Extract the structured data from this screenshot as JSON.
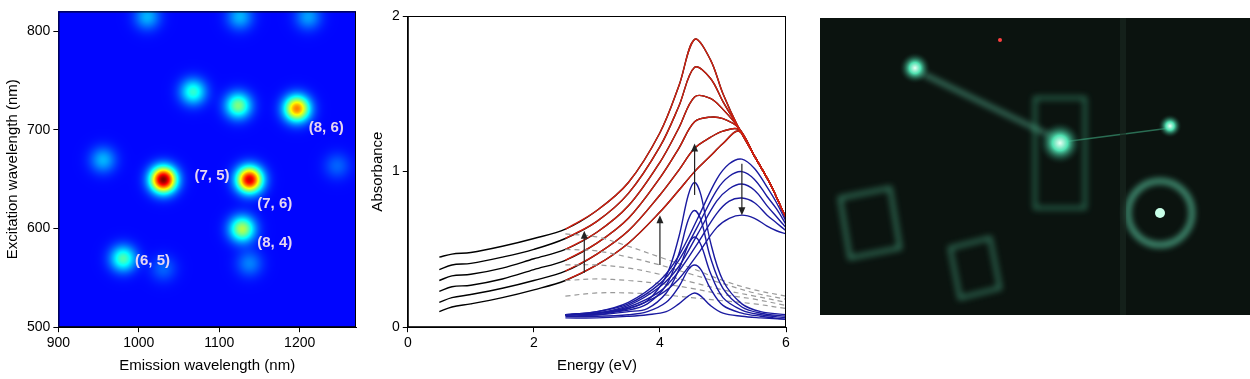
{
  "chart_data": [
    {
      "type": "heatmap",
      "x_label": "Emission wavelength (nm)",
      "y_label": "Excitation wavelength (nm)",
      "xlim": [
        900,
        1270
      ],
      "ylim": [
        500,
        820
      ],
      "xticks": [
        900,
        1000,
        1100,
        1200
      ],
      "yticks": [
        500,
        600,
        700,
        800
      ],
      "grid": false,
      "baseline": 0.13,
      "peaks": [
        {
          "x": 980,
          "y": 570,
          "intensity": 0.45
        },
        {
          "x": 1030,
          "y": 650,
          "intensity": 1.0
        },
        {
          "x": 1137,
          "y": 650,
          "intensity": 0.92
        },
        {
          "x": 1128,
          "y": 600,
          "intensity": 0.55
        },
        {
          "x": 1196,
          "y": 722,
          "intensity": 0.75
        },
        {
          "x": 1067,
          "y": 739,
          "intensity": 0.42
        },
        {
          "x": 1123,
          "y": 725,
          "intensity": 0.5
        },
        {
          "x": 955,
          "y": 670,
          "intensity": 0.3
        },
        {
          "x": 1246,
          "y": 664,
          "intensity": 0.22
        },
        {
          "x": 1010,
          "y": 815,
          "intensity": 0.3
        },
        {
          "x": 1125,
          "y": 815,
          "intensity": 0.3
        },
        {
          "x": 1210,
          "y": 815,
          "intensity": 0.28
        },
        {
          "x": 1030,
          "y": 560,
          "intensity": 0.22
        },
        {
          "x": 1137,
          "y": 565,
          "intensity": 0.25
        }
      ],
      "annotations": [
        {
          "text": "(6, 5)",
          "x": 1017,
          "y": 567
        },
        {
          "text": "(7, 5)",
          "x": 1091,
          "y": 653
        },
        {
          "text": "(7, 6)",
          "x": 1169,
          "y": 625
        },
        {
          "text": "(8, 4)",
          "x": 1169,
          "y": 585
        },
        {
          "text": "(8, 6)",
          "x": 1233,
          "y": 702
        }
      ]
    },
    {
      "type": "line",
      "x_label": "Energy (eV)",
      "y_label": "Absorbance",
      "xlim": [
        0,
        6
      ],
      "ylim": [
        0,
        2
      ],
      "xticks": [
        0,
        2,
        4,
        6
      ],
      "yticks": [
        0,
        1,
        2
      ],
      "grid": false,
      "series": [
        {
          "color": "#000000",
          "line_style": "solid",
          "x": [
            0.5,
            0.7,
            1.0,
            1.5,
            2.0,
            2.5,
            3.0,
            3.5,
            4.0,
            4.3,
            4.55,
            4.8,
            5.0,
            5.25,
            5.5,
            5.75,
            6.0
          ],
          "values": [
            0.45,
            0.47,
            0.48,
            0.52,
            0.57,
            0.63,
            0.75,
            0.93,
            1.25,
            1.55,
            1.85,
            1.72,
            1.5,
            1.28,
            1.1,
            0.92,
            0.7
          ]
        },
        {
          "color": "#000000",
          "line_style": "solid",
          "x": [
            0.5,
            0.7,
            1.0,
            1.5,
            2.0,
            2.5,
            3.0,
            3.5,
            4.0,
            4.3,
            4.55,
            4.8,
            5.0,
            5.25,
            5.5,
            5.75,
            6.0
          ],
          "values": [
            0.37,
            0.4,
            0.41,
            0.45,
            0.5,
            0.57,
            0.68,
            0.86,
            1.16,
            1.42,
            1.67,
            1.6,
            1.45,
            1.28,
            1.1,
            0.92,
            0.7
          ]
        },
        {
          "color": "#000000",
          "line_style": "solid",
          "x": [
            0.5,
            0.7,
            1.0,
            1.5,
            2.0,
            2.5,
            3.0,
            3.5,
            4.0,
            4.3,
            4.55,
            4.8,
            5.0,
            5.25,
            5.5,
            5.75,
            6.0
          ],
          "values": [
            0.3,
            0.33,
            0.34,
            0.38,
            0.44,
            0.5,
            0.61,
            0.78,
            1.06,
            1.28,
            1.48,
            1.47,
            1.4,
            1.28,
            1.1,
            0.92,
            0.7
          ]
        },
        {
          "color": "#000000",
          "line_style": "solid",
          "x": [
            0.5,
            0.7,
            1.0,
            1.5,
            2.0,
            2.5,
            3.0,
            3.5,
            4.0,
            4.3,
            4.55,
            4.8,
            5.0,
            5.25,
            5.5,
            5.75,
            6.0
          ],
          "values": [
            0.23,
            0.26,
            0.27,
            0.31,
            0.37,
            0.43,
            0.54,
            0.7,
            0.96,
            1.15,
            1.32,
            1.35,
            1.34,
            1.28,
            1.1,
            0.92,
            0.7
          ]
        },
        {
          "color": "#000000",
          "line_style": "solid",
          "x": [
            0.5,
            0.7,
            1.0,
            1.5,
            2.0,
            2.5,
            3.0,
            3.5,
            4.0,
            4.3,
            4.55,
            4.8,
            5.0,
            5.25,
            5.5,
            5.75,
            6.0
          ],
          "values": [
            0.16,
            0.19,
            0.21,
            0.25,
            0.3,
            0.36,
            0.47,
            0.62,
            0.85,
            1.01,
            1.15,
            1.22,
            1.26,
            1.27,
            1.1,
            0.92,
            0.7
          ]
        },
        {
          "color": "#000000",
          "line_style": "solid",
          "x": [
            0.5,
            0.7,
            1.0,
            1.5,
            2.0,
            2.5,
            3.0,
            3.5,
            4.0,
            4.3,
            4.55,
            4.8,
            5.0,
            5.25,
            5.5,
            5.75,
            6.0
          ],
          "values": [
            0.1,
            0.13,
            0.15,
            0.19,
            0.24,
            0.3,
            0.4,
            0.54,
            0.74,
            0.88,
            1.0,
            1.1,
            1.18,
            1.26,
            1.1,
            0.92,
            0.7
          ]
        },
        {
          "color": "#d02010",
          "line_style": "solid",
          "x": [
            2.5,
            3.0,
            3.5,
            4.0,
            4.3,
            4.55,
            4.8,
            5.0,
            5.25,
            5.5,
            5.75,
            6.0
          ],
          "values": [
            0.63,
            0.75,
            0.93,
            1.25,
            1.55,
            1.85,
            1.72,
            1.5,
            1.28,
            1.1,
            0.92,
            0.7
          ]
        },
        {
          "color": "#d02010",
          "line_style": "solid",
          "x": [
            2.5,
            3.0,
            3.5,
            4.0,
            4.3,
            4.55,
            4.8,
            5.0,
            5.25,
            5.5,
            5.75,
            6.0
          ],
          "values": [
            0.57,
            0.68,
            0.86,
            1.16,
            1.42,
            1.67,
            1.6,
            1.45,
            1.28,
            1.1,
            0.92,
            0.7
          ]
        },
        {
          "color": "#d02010",
          "line_style": "solid",
          "x": [
            2.5,
            3.0,
            3.5,
            4.0,
            4.3,
            4.55,
            4.8,
            5.0,
            5.25,
            5.5,
            5.75,
            6.0
          ],
          "values": [
            0.5,
            0.61,
            0.78,
            1.06,
            1.28,
            1.48,
            1.47,
            1.4,
            1.28,
            1.1,
            0.92,
            0.7
          ]
        },
        {
          "color": "#d02010",
          "line_style": "solid",
          "x": [
            2.5,
            3.0,
            3.5,
            4.0,
            4.3,
            4.55,
            4.8,
            5.0,
            5.25,
            5.5,
            5.75,
            6.0
          ],
          "values": [
            0.43,
            0.54,
            0.7,
            0.96,
            1.15,
            1.32,
            1.35,
            1.34,
            1.28,
            1.1,
            0.92,
            0.7
          ]
        },
        {
          "color": "#d02010",
          "line_style": "solid",
          "x": [
            2.5,
            3.0,
            3.5,
            4.0,
            4.3,
            4.55,
            4.8,
            5.0,
            5.25,
            5.5,
            5.75,
            6.0
          ],
          "values": [
            0.36,
            0.47,
            0.62,
            0.85,
            1.01,
            1.15,
            1.22,
            1.26,
            1.27,
            1.1,
            0.92,
            0.7
          ]
        },
        {
          "color": "#d02010",
          "line_style": "solid",
          "x": [
            2.5,
            3.0,
            3.5,
            4.0,
            4.3,
            4.55,
            4.8,
            5.0,
            5.25,
            5.5,
            5.75,
            6.0
          ],
          "values": [
            0.3,
            0.4,
            0.54,
            0.74,
            0.88,
            1.0,
            1.1,
            1.18,
            1.26,
            1.1,
            0.92,
            0.7
          ]
        },
        {
          "color": "#999999",
          "line_style": "dashed",
          "x": [
            2.5,
            3.0,
            3.5,
            4.0,
            4.5,
            5.0,
            5.5,
            6.0
          ],
          "values": [
            0.6,
            0.58,
            0.52,
            0.45,
            0.38,
            0.3,
            0.24,
            0.2
          ]
        },
        {
          "color": "#999999",
          "line_style": "dashed",
          "x": [
            2.5,
            3.0,
            3.5,
            4.0,
            4.5,
            5.0,
            5.5,
            6.0
          ],
          "values": [
            0.5,
            0.49,
            0.45,
            0.4,
            0.34,
            0.28,
            0.22,
            0.18
          ]
        },
        {
          "color": "#999999",
          "line_style": "dashed",
          "x": [
            2.5,
            3.0,
            3.5,
            4.0,
            4.5,
            5.0,
            5.5,
            6.0
          ],
          "values": [
            0.4,
            0.4,
            0.38,
            0.34,
            0.29,
            0.24,
            0.2,
            0.16
          ]
        },
        {
          "color": "#999999",
          "line_style": "dashed",
          "x": [
            2.5,
            3.0,
            3.5,
            4.0,
            4.5,
            5.0,
            5.5,
            6.0
          ],
          "values": [
            0.3,
            0.31,
            0.3,
            0.28,
            0.25,
            0.21,
            0.18,
            0.14
          ]
        },
        {
          "color": "#999999",
          "line_style": "dashed",
          "x": [
            2.5,
            3.0,
            3.5,
            4.0,
            4.5,
            5.0,
            5.5,
            6.0
          ],
          "values": [
            0.2,
            0.22,
            0.22,
            0.21,
            0.19,
            0.17,
            0.15,
            0.12
          ]
        },
        {
          "color": "#1a1aa0",
          "line_style": "solid",
          "x": [
            2.5,
            3.0,
            3.5,
            3.8,
            4.1,
            4.3,
            4.45,
            4.55,
            4.65,
            4.8,
            5.0,
            5.3,
            5.6,
            6.0
          ],
          "values": [
            0.08,
            0.09,
            0.12,
            0.17,
            0.33,
            0.58,
            0.85,
            0.93,
            0.85,
            0.55,
            0.3,
            0.15,
            0.1,
            0.08
          ]
        },
        {
          "color": "#1a1aa0",
          "line_style": "solid",
          "x": [
            2.5,
            3.0,
            3.5,
            3.8,
            4.1,
            4.3,
            4.45,
            4.55,
            4.65,
            4.8,
            5.0,
            5.3,
            5.6,
            6.0
          ],
          "values": [
            0.08,
            0.09,
            0.11,
            0.15,
            0.27,
            0.47,
            0.69,
            0.75,
            0.69,
            0.45,
            0.25,
            0.13,
            0.09,
            0.07
          ]
        },
        {
          "color": "#1a1aa0",
          "line_style": "solid",
          "x": [
            2.5,
            3.0,
            3.5,
            3.8,
            4.1,
            4.3,
            4.45,
            4.55,
            4.65,
            4.8,
            5.0,
            5.3,
            5.6,
            6.0
          ],
          "values": [
            0.08,
            0.08,
            0.1,
            0.12,
            0.22,
            0.37,
            0.53,
            0.58,
            0.53,
            0.35,
            0.19,
            0.11,
            0.08,
            0.06
          ]
        },
        {
          "color": "#1a1aa0",
          "line_style": "solid",
          "x": [
            2.5,
            3.0,
            3.5,
            3.8,
            4.1,
            4.3,
            4.45,
            4.55,
            4.65,
            4.8,
            5.0,
            5.3,
            5.6,
            6.0
          ],
          "values": [
            0.07,
            0.07,
            0.08,
            0.1,
            0.16,
            0.26,
            0.37,
            0.4,
            0.37,
            0.25,
            0.14,
            0.09,
            0.07,
            0.05
          ]
        },
        {
          "color": "#1a1aa0",
          "line_style": "solid",
          "x": [
            2.5,
            3.0,
            3.5,
            3.8,
            4.1,
            4.3,
            4.45,
            4.55,
            4.65,
            4.8,
            5.0,
            5.3,
            5.6,
            6.0
          ],
          "values": [
            0.06,
            0.06,
            0.07,
            0.08,
            0.1,
            0.15,
            0.2,
            0.22,
            0.2,
            0.14,
            0.09,
            0.07,
            0.06,
            0.05
          ]
        },
        {
          "color": "#1a1aa0",
          "line_style": "solid",
          "x": [
            2.5,
            3.0,
            3.5,
            4.0,
            4.3,
            4.6,
            4.9,
            5.1,
            5.3,
            5.5,
            5.7,
            5.85,
            6.0
          ],
          "values": [
            0.08,
            0.1,
            0.16,
            0.3,
            0.46,
            0.7,
            0.95,
            1.05,
            1.08,
            1.02,
            0.9,
            0.8,
            0.68
          ]
        },
        {
          "color": "#1a1aa0",
          "line_style": "solid",
          "x": [
            2.5,
            3.0,
            3.5,
            4.0,
            4.3,
            4.6,
            4.9,
            5.1,
            5.3,
            5.5,
            5.7,
            5.85,
            6.0
          ],
          "values": [
            0.08,
            0.1,
            0.15,
            0.28,
            0.43,
            0.65,
            0.88,
            0.97,
            1.0,
            0.95,
            0.84,
            0.76,
            0.66
          ]
        },
        {
          "color": "#1a1aa0",
          "line_style": "solid",
          "x": [
            2.5,
            3.0,
            3.5,
            4.0,
            4.3,
            4.6,
            4.9,
            5.1,
            5.3,
            5.5,
            5.7,
            5.85,
            6.0
          ],
          "values": [
            0.08,
            0.09,
            0.14,
            0.26,
            0.39,
            0.6,
            0.81,
            0.89,
            0.92,
            0.88,
            0.78,
            0.71,
            0.64
          ]
        },
        {
          "color": "#1a1aa0",
          "line_style": "solid",
          "x": [
            2.5,
            3.0,
            3.5,
            4.0,
            4.3,
            4.6,
            4.9,
            5.1,
            5.3,
            5.5,
            5.7,
            5.85,
            6.0
          ],
          "values": [
            0.08,
            0.09,
            0.13,
            0.23,
            0.36,
            0.54,
            0.73,
            0.81,
            0.83,
            0.8,
            0.72,
            0.67,
            0.62
          ]
        },
        {
          "color": "#1a1aa0",
          "line_style": "solid",
          "x": [
            2.5,
            3.0,
            3.5,
            4.0,
            4.3,
            4.6,
            4.9,
            5.1,
            5.3,
            5.5,
            5.7,
            5.85,
            6.0
          ],
          "values": [
            0.08,
            0.08,
            0.12,
            0.21,
            0.31,
            0.47,
            0.64,
            0.7,
            0.72,
            0.7,
            0.65,
            0.62,
            0.6
          ]
        }
      ],
      "arrows": [
        {
          "x": 2.8,
          "from": 0.35,
          "to": 0.62
        },
        {
          "x": 4.0,
          "from": 0.4,
          "to": 0.72
        },
        {
          "x": 4.55,
          "from": 0.85,
          "to": 1.18
        },
        {
          "x": 5.3,
          "from": 1.05,
          "to": 0.72
        }
      ]
    }
  ]
}
